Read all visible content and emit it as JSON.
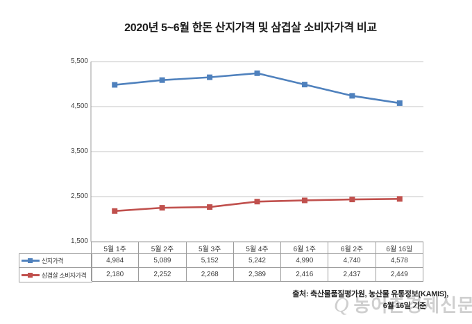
{
  "title": "2020년 5~6월 한돈 산지가격 및 삼겹살 소비자가격 비교",
  "chart_data": {
    "type": "line",
    "categories": [
      "5월 1주",
      "5월 2주",
      "5월 3주",
      "5월 4주",
      "6월 1주",
      "6월 2주",
      "6월 16일"
    ],
    "series": [
      {
        "name": "산지가격",
        "color": "#4f81bd",
        "values": [
          4984,
          5089,
          5152,
          5242,
          4990,
          4740,
          4578
        ]
      },
      {
        "name": "삼겹살 소비자가격",
        "color": "#c0504d",
        "values": [
          2180,
          2252,
          2268,
          2389,
          2416,
          2437,
          2449
        ]
      }
    ],
    "ylim": [
      1500,
      5500
    ],
    "yticks": [
      1500,
      2500,
      3500,
      4500,
      5500
    ],
    "grid": true,
    "legend_position": "left-of-data-table",
    "gridline_color": "#c6c6c6",
    "axis_color": "#9b9b9b"
  },
  "footer": {
    "source_line": "출처: 축산물품질평가원, 농산물 유통정보(KAMIS),",
    "as_of_line": "6월 16일 기준"
  },
  "watermark": {
    "logo": "Q",
    "text": "농어촌경제신문",
    "color": "#cfcfcf"
  }
}
